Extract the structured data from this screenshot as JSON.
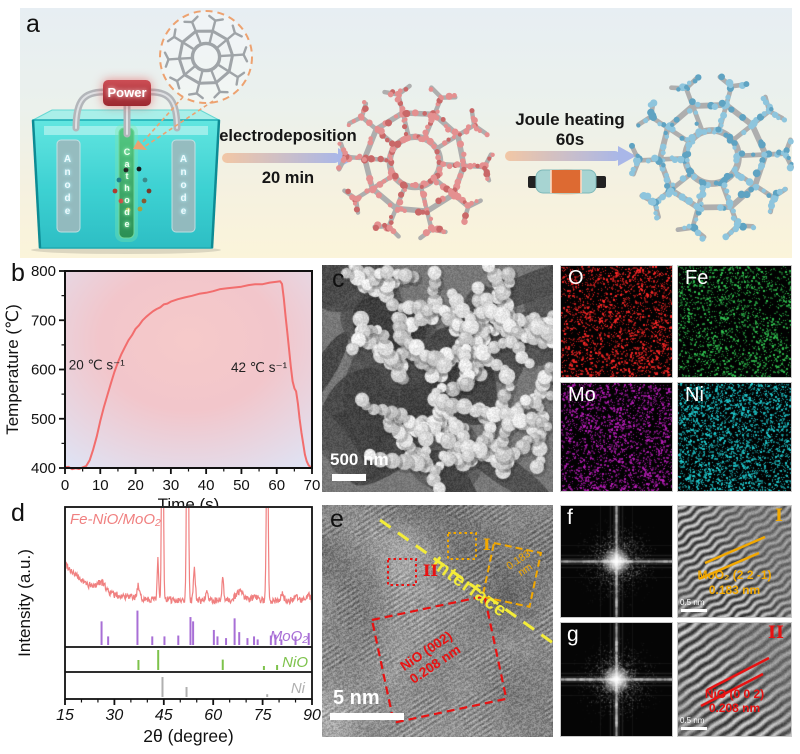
{
  "colors": {
    "arrow_start": "#f2c7a5",
    "arrow_end": "#a9b7e8",
    "tube_gray": "#b3b6ba",
    "framework_tube": "#aeaeae",
    "deposit_red_light": "#e49090",
    "deposit_red_dark": "#c96868",
    "deposit_blue_light": "#8ec5dd",
    "deposit_blue_dark": "#5fa3c2",
    "dashed_circle_orange": "#eda270",
    "curve_red": "#f26d6d",
    "plot_bg_pink": "#f6caca",
    "plot_bg_lavender": "#dfe3f4",
    "xrd_main": "#f08080",
    "xrd_moo2": "#a86fd6",
    "xrd_nio": "#7dc24b",
    "xrd_ni": "#b0b0b0",
    "eds_o": "#ff2626",
    "eds_fe": "#2fc24f",
    "eds_mo": "#b81cb8",
    "eds_ni": "#1ec9cd",
    "hrtem_orange": "#f2a800",
    "hrtem_red": "#e81212",
    "interface_yellow": "#f3ec39"
  },
  "panel_a": {
    "label": "a",
    "power": "Power",
    "anode": "Anode",
    "cathode": "Cathode",
    "arrow1_title": "electrodeposition",
    "arrow1_sub": "20 min",
    "arrow2_title": "Joule heating",
    "arrow2_sub": "60s"
  },
  "panel_b": {
    "label": "b"
  },
  "panel_c": {
    "label": "c",
    "scale_bar": "500 nm",
    "eds": [
      {
        "element": "O"
      },
      {
        "element": "Fe"
      },
      {
        "element": "Mo"
      },
      {
        "element": "Ni"
      }
    ]
  },
  "panel_d": {
    "label": "d"
  },
  "panel_e": {
    "label": "e",
    "interface": "Interface",
    "region1": "I",
    "region2": "II",
    "box1_line1": "0.183",
    "box1_line2": "nm",
    "box2_line1": "NiO (002)",
    "box2_line2": "0.208 nm",
    "scale_bar": "5 nm"
  },
  "panel_f": {
    "label": "f",
    "region": "I",
    "phase": "MoO₂ (2 2 -1)",
    "spacing": "0.183 nm",
    "scale_bar": "0.5 nm"
  },
  "panel_g": {
    "label": "g",
    "region": "II",
    "phase": "NiO (0 0 2)",
    "spacing": "0.208 nm",
    "scale_bar": "0.5 nm"
  },
  "chart_data": [
    {
      "id": "temperature_profile",
      "type": "line",
      "xlabel": "Time (s)",
      "ylabel": "Temperature (℃)",
      "xlim": [
        0,
        70
      ],
      "ylim": [
        400,
        800
      ],
      "xticks": [
        0,
        10,
        20,
        30,
        40,
        50,
        60,
        70
      ],
      "yticks": [
        400,
        500,
        600,
        700,
        800
      ],
      "annotations": [
        {
          "text": "20 ℃ s⁻¹",
          "x": 9,
          "y": 600
        },
        {
          "text": "42 ℃ s⁻¹",
          "x": 55,
          "y": 595
        }
      ],
      "series": [
        {
          "name": "temperature",
          "color": "#f26d6d",
          "points": [
            [
              0,
              400
            ],
            [
              1,
              401
            ],
            [
              2,
              399
            ],
            [
              3,
              400
            ],
            [
              4,
              398
            ],
            [
              5,
              401
            ],
            [
              6,
              404
            ],
            [
              7,
              415
            ],
            [
              8,
              438
            ],
            [
              9,
              465
            ],
            [
              10,
              495
            ],
            [
              11,
              522
            ],
            [
              12,
              548
            ],
            [
              13,
              572
            ],
            [
              14,
              594
            ],
            [
              15,
              614
            ],
            [
              16,
              631
            ],
            [
              17,
              646
            ],
            [
              18,
              659
            ],
            [
              19,
              671
            ],
            [
              20,
              682
            ],
            [
              21,
              691
            ],
            [
              22,
              699
            ],
            [
              23,
              706
            ],
            [
              24,
              712
            ],
            [
              25,
              718
            ],
            [
              26,
              723
            ],
            [
              27,
              727
            ],
            [
              28,
              731
            ],
            [
              29,
              735
            ],
            [
              30,
              738
            ],
            [
              32,
              743
            ],
            [
              34,
              747
            ],
            [
              36,
              751
            ],
            [
              38,
              754
            ],
            [
              40,
              757
            ],
            [
              42,
              760
            ],
            [
              44,
              762
            ],
            [
              46,
              764
            ],
            [
              48,
              766
            ],
            [
              50,
              768
            ],
            [
              52,
              770
            ],
            [
              54,
              772
            ],
            [
              56,
              774
            ],
            [
              58,
              776
            ],
            [
              60,
              778
            ],
            [
              61,
              779
            ],
            [
              61.5,
              775
            ],
            [
              62,
              745
            ],
            [
              62.5,
              710
            ],
            [
              63,
              675
            ],
            [
              63.5,
              640
            ],
            [
              64,
              605
            ],
            [
              64.5,
              575
            ],
            [
              65,
              563
            ],
            [
              65.5,
              555
            ],
            [
              66,
              530
            ],
            [
              66.5,
              500
            ],
            [
              67,
              472
            ],
            [
              67.5,
              448
            ],
            [
              68,
              428
            ],
            [
              68.5,
              415
            ],
            [
              69,
              406
            ],
            [
              70,
              400
            ]
          ]
        }
      ]
    },
    {
      "id": "xrd",
      "type": "line",
      "xlabel": "2θ (degree)",
      "ylabel": "Intensity (a.u.)",
      "xlim": [
        15,
        90
      ],
      "xticks": [
        15,
        30,
        45,
        60,
        75,
        90
      ],
      "main_trace": {
        "name": "Fe-NiO/MoO₂",
        "color": "#f08080",
        "peaks": [
          [
            26,
            9,
            1.8
          ],
          [
            37.2,
            12,
            0.5
          ],
          [
            43.2,
            42,
            0.3
          ],
          [
            44.6,
            300,
            0.33
          ],
          [
            52.2,
            300,
            0.36
          ],
          [
            54.3,
            30,
            0.42
          ],
          [
            58,
            7,
            0.5
          ],
          [
            62.9,
            22,
            0.33
          ],
          [
            68,
            9,
            1.6
          ],
          [
            72.5,
            6,
            0.8
          ],
          [
            76.4,
            210,
            0.36
          ],
          [
            81,
            6,
            0.7
          ],
          [
            85,
            5,
            0.7
          ],
          [
            89,
            5,
            0.7
          ]
        ]
      },
      "reference_patterns": [
        {
          "name": "MoO₂",
          "color": "#a86fd6",
          "peaks": [
            [
              26.1,
              0.55
            ],
            [
              28.1,
              0.2
            ],
            [
              37,
              0.8
            ],
            [
              41.5,
              0.2
            ],
            [
              45.2,
              0.2
            ],
            [
              49.4,
              0.22
            ],
            [
              53.1,
              0.65
            ],
            [
              53.9,
              0.55
            ],
            [
              60.2,
              0.35
            ],
            [
              61.3,
              0.2
            ],
            [
              63.9,
              0.16
            ],
            [
              66.5,
              0.62
            ],
            [
              67.9,
              0.3
            ],
            [
              70.4,
              0.16
            ],
            [
              72.4,
              0.2
            ],
            [
              73.5,
              0.13
            ],
            [
              77.5,
              0.22
            ],
            [
              78.9,
              0.24
            ],
            [
              80.7,
              0.13
            ],
            [
              85,
              0.2
            ],
            [
              89,
              0.28
            ]
          ]
        },
        {
          "name": "NiO",
          "color": "#7dc24b",
          "peaks": [
            [
              37.3,
              0.5
            ],
            [
              43.3,
              1
            ],
            [
              62.9,
              0.52
            ],
            [
              75.4,
              0.2
            ],
            [
              79.4,
              0.25
            ]
          ]
        },
        {
          "name": "Ni",
          "color": "#b0b0b0",
          "peaks": [
            [
              44.6,
              1
            ],
            [
              51.9,
              0.5
            ],
            [
              76.4,
              0.14
            ]
          ]
        }
      ]
    }
  ]
}
